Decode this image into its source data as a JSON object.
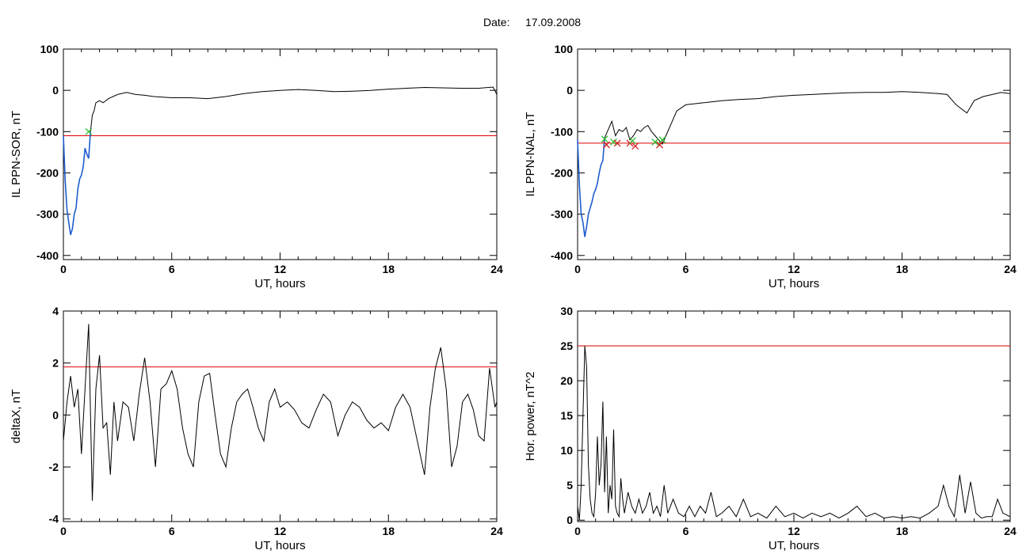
{
  "header": {
    "label": "Date:",
    "date": "17.09.2008"
  },
  "colors": {
    "axis": "#000000",
    "trace": "#000000",
    "threshold": "#e00000",
    "substorm": "#1f5fd0",
    "mark_onset": "#30c030",
    "mark_x": "#d02020"
  },
  "chart_data": [
    {
      "id": "il-sor",
      "type": "line",
      "title": "",
      "xlabel": "UT, hours",
      "ylabel": "IL PPN-SOR, nT",
      "xlim": [
        0,
        24
      ],
      "ylim": [
        -410,
        100
      ],
      "xticks": [
        0,
        6,
        12,
        18,
        24
      ],
      "yticks": [
        100,
        0,
        -100,
        -200,
        -300,
        -400
      ],
      "threshold": -110,
      "highlight_range": [
        0,
        1.55
      ],
      "markers": [
        {
          "x": 1.4,
          "y": -100,
          "type": "onset"
        }
      ],
      "x": [
        0,
        0.1,
        0.2,
        0.3,
        0.4,
        0.5,
        0.6,
        0.7,
        0.8,
        0.9,
        1.0,
        1.1,
        1.2,
        1.3,
        1.4,
        1.5,
        1.6,
        1.7,
        1.8,
        2.0,
        2.2,
        2.5,
        3.0,
        3.5,
        4.0,
        4.5,
        5.0,
        6.0,
        7.0,
        8.0,
        9.0,
        10.0,
        11.0,
        12.0,
        13.0,
        14.0,
        15.0,
        16.0,
        17.0,
        18.0,
        19.0,
        20.0,
        21.0,
        22.0,
        23.0,
        23.8,
        24.0
      ],
      "values": [
        -110,
        -220,
        -290,
        -320,
        -350,
        -335,
        -300,
        -285,
        -240,
        -215,
        -205,
        -185,
        -140,
        -155,
        -165,
        -100,
        -60,
        -50,
        -30,
        -25,
        -30,
        -20,
        -10,
        -5,
        -10,
        -12,
        -15,
        -18,
        -18,
        -20,
        -15,
        -8,
        -3,
        0,
        2,
        0,
        -3,
        -2,
        0,
        3,
        5,
        7,
        6,
        5,
        5,
        8,
        -10
      ]
    },
    {
      "id": "il-nal",
      "type": "line",
      "title": "",
      "xlabel": "UT, hours",
      "ylabel": "IL PPN-NAL, nT",
      "xlim": [
        0,
        24
      ],
      "ylim": [
        -410,
        100
      ],
      "xticks": [
        0,
        6,
        12,
        18,
        24
      ],
      "yticks": [
        100,
        0,
        -100,
        -200,
        -300,
        -400
      ],
      "threshold": -128,
      "highlight_range": [
        0,
        1.5
      ],
      "markers": [
        {
          "x": 1.5,
          "y": -118,
          "type": "onset"
        },
        {
          "x": 1.6,
          "y": -132,
          "type": "x"
        },
        {
          "x": 2.0,
          "y": -125,
          "type": "onset"
        },
        {
          "x": 2.2,
          "y": -128,
          "type": "x"
        },
        {
          "x": 2.9,
          "y": -128,
          "type": "x"
        },
        {
          "x": 3.05,
          "y": -122,
          "type": "onset"
        },
        {
          "x": 3.2,
          "y": -135,
          "type": "x"
        },
        {
          "x": 4.3,
          "y": -125,
          "type": "onset"
        },
        {
          "x": 4.55,
          "y": -132,
          "type": "x"
        },
        {
          "x": 4.7,
          "y": -120,
          "type": "onset"
        }
      ],
      "x": [
        0,
        0.1,
        0.2,
        0.3,
        0.4,
        0.5,
        0.6,
        0.7,
        0.8,
        0.9,
        1.0,
        1.1,
        1.2,
        1.3,
        1.4,
        1.5,
        1.7,
        1.9,
        2.1,
        2.3,
        2.5,
        2.7,
        2.9,
        3.1,
        3.3,
        3.5,
        3.7,
        3.9,
        4.1,
        4.3,
        4.5,
        4.7,
        4.9,
        5.2,
        5.5,
        6.0,
        7.0,
        8.0,
        9.0,
        10.0,
        11.0,
        12.0,
        13.0,
        14.0,
        15.0,
        16.0,
        17.0,
        18.0,
        19.0,
        20.0,
        20.5,
        20.8,
        21.0,
        21.3,
        21.6,
        22.0,
        22.5,
        23.0,
        23.5,
        24.0
      ],
      "values": [
        -120,
        -230,
        -300,
        -320,
        -355,
        -330,
        -300,
        -285,
        -270,
        -250,
        -240,
        -225,
        -200,
        -180,
        -170,
        -115,
        -95,
        -75,
        -110,
        -95,
        -100,
        -90,
        -120,
        -110,
        -95,
        -100,
        -90,
        -85,
        -100,
        -110,
        -120,
        -130,
        -110,
        -80,
        -50,
        -35,
        -30,
        -25,
        -22,
        -20,
        -15,
        -12,
        -10,
        -8,
        -6,
        -5,
        -5,
        -3,
        -5,
        -8,
        -10,
        -25,
        -35,
        -45,
        -55,
        -25,
        -15,
        -10,
        -5,
        -8
      ]
    },
    {
      "id": "deltax",
      "type": "line",
      "title": "",
      "xlabel": "UT, hours",
      "ylabel": "deltaX, nT",
      "xlim": [
        0,
        24
      ],
      "ylim": [
        -4.1,
        4.0
      ],
      "xticks": [
        0,
        6,
        12,
        18,
        24
      ],
      "yticks": [
        4,
        2,
        0,
        -2,
        -4
      ],
      "threshold": 1.85,
      "x": [
        0,
        0.2,
        0.4,
        0.6,
        0.8,
        1.0,
        1.2,
        1.4,
        1.6,
        1.8,
        2.0,
        2.2,
        2.4,
        2.6,
        2.8,
        3.0,
        3.3,
        3.6,
        3.9,
        4.2,
        4.5,
        4.8,
        5.1,
        5.4,
        5.7,
        6.0,
        6.3,
        6.6,
        6.9,
        7.2,
        7.5,
        7.8,
        8.1,
        8.4,
        8.7,
        9.0,
        9.3,
        9.6,
        9.9,
        10.2,
        10.5,
        10.8,
        11.1,
        11.4,
        11.7,
        12.0,
        12.4,
        12.8,
        13.2,
        13.6,
        14.0,
        14.4,
        14.8,
        15.2,
        15.6,
        16.0,
        16.4,
        16.8,
        17.2,
        17.6,
        18.0,
        18.4,
        18.8,
        19.2,
        19.6,
        20.0,
        20.3,
        20.6,
        20.9,
        21.2,
        21.5,
        21.8,
        22.1,
        22.4,
        22.7,
        23.0,
        23.3,
        23.6,
        23.9,
        24.0
      ],
      "values": [
        -1.0,
        0.5,
        1.5,
        0.3,
        1.0,
        -1.5,
        1.0,
        3.5,
        -3.3,
        1.0,
        2.3,
        -0.5,
        -0.3,
        -2.3,
        0.5,
        -1.0,
        0.5,
        0.3,
        -1.0,
        0.8,
        2.2,
        0.5,
        -2.0,
        1.0,
        1.2,
        1.7,
        1.0,
        -0.5,
        -1.5,
        -2.0,
        0.5,
        1.5,
        1.6,
        0.0,
        -1.5,
        -2.0,
        -0.5,
        0.5,
        0.8,
        1.0,
        0.3,
        -0.5,
        -1.0,
        0.5,
        1.0,
        0.3,
        0.5,
        0.2,
        -0.3,
        -0.5,
        0.2,
        0.8,
        0.5,
        -0.8,
        0.0,
        0.5,
        0.3,
        -0.2,
        -0.5,
        -0.3,
        -0.6,
        0.3,
        0.8,
        0.3,
        -1.0,
        -2.3,
        0.3,
        1.8,
        2.6,
        1.0,
        -2.0,
        -1.2,
        0.5,
        0.8,
        0.2,
        -0.8,
        -1.0,
        1.8,
        0.3,
        0.5
      ]
    },
    {
      "id": "hor-power",
      "type": "line",
      "title": "",
      "xlabel": "UT, hours",
      "ylabel": "Hor. power, nT^2",
      "xlim": [
        0,
        24
      ],
      "ylim": [
        -0.2,
        30
      ],
      "xticks": [
        0,
        6,
        12,
        18,
        24
      ],
      "yticks": [
        30,
        25,
        20,
        15,
        10,
        5,
        0
      ],
      "threshold": 25,
      "x": [
        0,
        0.1,
        0.2,
        0.3,
        0.4,
        0.5,
        0.6,
        0.7,
        0.8,
        0.9,
        1.0,
        1.1,
        1.2,
        1.3,
        1.4,
        1.5,
        1.6,
        1.7,
        1.8,
        1.9,
        2.0,
        2.1,
        2.2,
        2.3,
        2.4,
        2.5,
        2.6,
        2.8,
        3.0,
        3.2,
        3.4,
        3.6,
        3.8,
        4.0,
        4.2,
        4.4,
        4.6,
        4.8,
        5.0,
        5.3,
        5.6,
        5.9,
        6.2,
        6.5,
        6.8,
        7.1,
        7.4,
        7.7,
        8.0,
        8.4,
        8.8,
        9.2,
        9.6,
        10.0,
        10.5,
        11.0,
        11.5,
        12.0,
        12.5,
        13.0,
        13.5,
        14.0,
        14.5,
        15.0,
        15.5,
        16.0,
        16.5,
        17.0,
        17.5,
        18.0,
        18.5,
        19.0,
        19.5,
        20.0,
        20.3,
        20.6,
        20.9,
        21.2,
        21.5,
        21.8,
        22.1,
        22.4,
        22.7,
        23.0,
        23.3,
        23.6,
        24.0
      ],
      "values": [
        2,
        0,
        5,
        15,
        25,
        22,
        8,
        3,
        1,
        0.5,
        4,
        12,
        5,
        8,
        17,
        4,
        12,
        1,
        5,
        3,
        13,
        2,
        1,
        0.5,
        6,
        3,
        1,
        4,
        2,
        1,
        3,
        1,
        2,
        4,
        1,
        2,
        0.5,
        5,
        1,
        3,
        1,
        0.5,
        2,
        0.5,
        2,
        1,
        4,
        0.5,
        1,
        2,
        0.5,
        3,
        0.5,
        1,
        0.3,
        2,
        0.5,
        1,
        0.3,
        1,
        0.5,
        1,
        0.3,
        1,
        2,
        0.5,
        1,
        0.3,
        0.5,
        0.3,
        0.5,
        0.3,
        1,
        2,
        5,
        2,
        0.5,
        6.5,
        1,
        5.5,
        1,
        0.3,
        0.5,
        0.5,
        3,
        1,
        0.5
      ]
    }
  ]
}
